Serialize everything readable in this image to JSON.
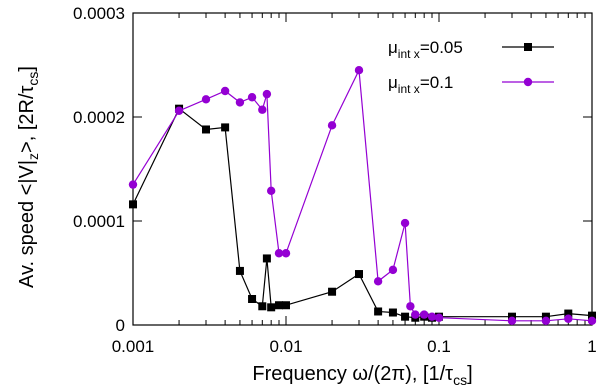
{
  "chart_data": {
    "type": "line",
    "x_scale": "log",
    "xlim": [
      0.001,
      1
    ],
    "ylim": [
      0,
      0.0003
    ],
    "grid": false,
    "legend_position": "top-right",
    "xlabel": "Frequency ω/(2π), [1/τ",
    "xlabel_sub": "cs",
    "xlabel_end": "]",
    "ylabel": "Av. speed <|V|",
    "ylabel_sub": "z",
    "ylabel_end": ">, [2R/τ",
    "ylabel_sub2": "cs",
    "ylabel_end2": "]",
    "x_ticks": [
      {
        "value": 0.001,
        "label": "0.001"
      },
      {
        "value": 0.01,
        "label": "0.01"
      },
      {
        "value": 0.1,
        "label": "0.1"
      },
      {
        "value": 1,
        "label": "1"
      }
    ],
    "y_ticks": [
      {
        "value": 0,
        "label": "0"
      },
      {
        "value": 0.0001,
        "label": "0.0001"
      },
      {
        "value": 0.0002,
        "label": "0.0002"
      },
      {
        "value": 0.0003,
        "label": "0.0003"
      }
    ],
    "series": [
      {
        "name": "μint x=0.05",
        "legend_mu": "μ",
        "legend_sub": "int x",
        "legend_value": "=0.05",
        "color": "#000000",
        "marker": "square",
        "x": [
          0.001,
          0.002,
          0.003,
          0.004,
          0.005,
          0.006,
          0.007,
          0.0075,
          0.008,
          0.009,
          0.01,
          0.02,
          0.03,
          0.04,
          0.05,
          0.06,
          0.07,
          0.08,
          0.09,
          0.1,
          0.3,
          0.5,
          0.7,
          1.0
        ],
        "y": [
          0.000116,
          0.000208,
          0.000188,
          0.00019,
          5.2e-05,
          2.5e-05,
          1.8e-05,
          6.4e-05,
          1.7e-05,
          1.9e-05,
          1.9e-05,
          3.2e-05,
          4.9e-05,
          1.3e-05,
          1.2e-05,
          8e-06,
          7e-06,
          8e-06,
          7e-06,
          8e-06,
          8e-06,
          8e-06,
          1.1e-05,
          9e-06
        ]
      },
      {
        "name": "μint x=0.1",
        "legend_mu": "μ",
        "legend_sub": "int x",
        "legend_value": "=0.1",
        "color": "#9400d3",
        "marker": "circle",
        "x": [
          0.001,
          0.002,
          0.003,
          0.004,
          0.005,
          0.006,
          0.007,
          0.0075,
          0.008,
          0.009,
          0.01,
          0.02,
          0.03,
          0.04,
          0.05,
          0.06,
          0.065,
          0.07,
          0.08,
          0.09,
          0.1,
          0.3,
          0.5,
          0.7,
          1.0
        ],
        "y": [
          0.000135,
          0.000206,
          0.000217,
          0.000225,
          0.000214,
          0.000219,
          0.000207,
          0.000222,
          0.000129,
          6.9e-05,
          6.9e-05,
          0.000192,
          0.000245,
          4.2e-05,
          5.3e-05,
          9.8e-05,
          1.8e-05,
          1e-05,
          1e-05,
          8e-06,
          7e-06,
          4e-06,
          4e-06,
          6e-06,
          4e-06
        ]
      }
    ]
  }
}
